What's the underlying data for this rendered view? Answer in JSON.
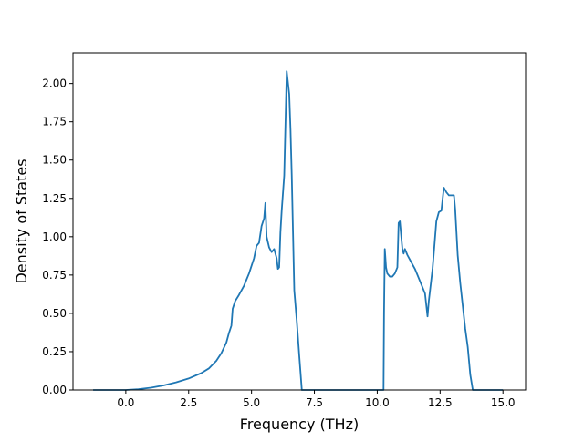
{
  "chart_data": {
    "type": "line",
    "title": "",
    "xlabel": "Frequency (THz)",
    "ylabel": "Density of States",
    "xlim": [
      -2.1,
      15.9
    ],
    "ylim": [
      0.0,
      2.2
    ],
    "x_ticks": [
      0.0,
      2.5,
      5.0,
      7.5,
      10.0,
      12.5,
      15.0
    ],
    "x_tick_labels": [
      "0.0",
      "2.5",
      "5.0",
      "7.5",
      "10.0",
      "12.5",
      "15.0"
    ],
    "y_ticks": [
      0.0,
      0.25,
      0.5,
      0.75,
      1.0,
      1.25,
      1.5,
      1.75,
      2.0
    ],
    "y_tick_labels": [
      "0.00",
      "0.25",
      "0.50",
      "0.75",
      "1.00",
      "1.25",
      "1.50",
      "1.75",
      "2.00"
    ],
    "grid": false,
    "legend": "none",
    "series": [
      {
        "color": "#1f77b4",
        "x": [
          -1.3,
          0.0,
          0.5,
          1.0,
          1.5,
          2.0,
          2.5,
          3.0,
          3.3,
          3.6,
          3.8,
          4.0,
          4.1,
          4.2,
          4.25,
          4.35,
          4.5,
          4.7,
          4.9,
          5.1,
          5.2,
          5.25,
          5.3,
          5.4,
          5.5,
          5.55,
          5.6,
          5.7,
          5.8,
          5.9,
          6.0,
          6.05,
          6.1,
          6.15,
          6.2,
          6.3,
          6.4,
          6.5,
          6.55,
          6.6,
          6.7,
          6.8,
          6.9,
          7.0,
          7.1,
          7.2,
          7.25,
          10.25,
          10.27,
          10.3,
          10.35,
          10.4,
          10.5,
          10.6,
          10.7,
          10.8,
          10.85,
          10.9,
          11.0,
          11.05,
          11.1,
          11.15,
          11.2,
          11.3,
          11.5,
          11.7,
          11.9,
          12.0,
          12.05,
          12.2,
          12.35,
          12.45,
          12.55,
          12.65,
          12.75,
          12.85,
          12.95,
          13.05,
          13.1,
          13.2,
          13.3,
          13.4,
          13.5,
          13.6,
          13.7,
          13.8,
          15.0
        ],
        "y": [
          0.0,
          0.0,
          0.005,
          0.015,
          0.03,
          0.05,
          0.075,
          0.11,
          0.14,
          0.19,
          0.24,
          0.31,
          0.37,
          0.42,
          0.53,
          0.58,
          0.62,
          0.68,
          0.76,
          0.86,
          0.94,
          0.95,
          0.96,
          1.07,
          1.12,
          1.22,
          1.0,
          0.93,
          0.9,
          0.92,
          0.86,
          0.79,
          0.8,
          1.03,
          1.17,
          1.4,
          2.08,
          1.93,
          1.7,
          1.4,
          0.65,
          0.45,
          0.22,
          0.0,
          0.0,
          0.0,
          0.0,
          0.0,
          0.5,
          0.92,
          0.8,
          0.76,
          0.74,
          0.74,
          0.76,
          0.8,
          1.09,
          1.1,
          0.92,
          0.89,
          0.92,
          0.9,
          0.88,
          0.85,
          0.79,
          0.71,
          0.63,
          0.48,
          0.58,
          0.79,
          1.1,
          1.16,
          1.17,
          1.32,
          1.29,
          1.27,
          1.27,
          1.27,
          1.18,
          0.88,
          0.7,
          0.55,
          0.4,
          0.28,
          0.1,
          0.0,
          0.0
        ]
      }
    ]
  }
}
